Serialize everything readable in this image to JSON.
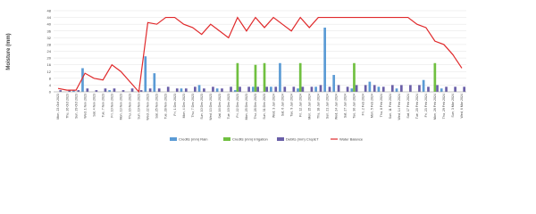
{
  "chart_data": {
    "type": "combo",
    "y_label": "Moisture (mm)",
    "categories": [
      "Mon, 23 Oct 2023",
      "Thu, 26 Oct 2023",
      "Sun, 29 Oct 2023",
      "Wed, 1 Nov 2023",
      "Sat, 4 Nov 2023",
      "Tue, 7 Nov 2023",
      "Fri, 10 Nov 2023",
      "Mon, 13 Nov 2023",
      "Thu, 16 Nov 2023",
      "Sun, 19 Nov 2023",
      "Wed, 22 Nov 2023",
      "Sat, 25 Nov 2023",
      "Tue, 28 Nov 2023",
      "Fri, 1 Dec 2023",
      "Mon, 4 Dec 2023",
      "Thu, 7 Dec 2023",
      "Sun, 10 Dec 2023",
      "Wed, 13 Dec 2023",
      "Sat, 16 Dec 2023",
      "Tue, 19 Dec 2023",
      "Fri, 22 Dec 2023",
      "Mon, 25 Dec 2023",
      "Thu, 28 Dec 2023",
      "Sun, 31 Dec 2023",
      "Wed, 3 Jan 2024",
      "Sat, 6 Jan 2024",
      "Tue, 9 Jan 2024",
      "Fri, 12 Jan 2024",
      "Mon, 15 Jan 2024",
      "Thu, 18 Jan 2024",
      "Sun, 21 Jan 2024",
      "Wed, 24 Jan 2024",
      "Sat, 27 Jan 2024",
      "Tue, 30 Jan 2024",
      "Fri, 2 Feb 2024",
      "Mon, 5 Feb 2024",
      "Thu, 8 Feb 2024",
      "Sun, 11 Feb 2024",
      "Wed, 14 Feb 2024",
      "Sat, 17 Feb 2024",
      "Tue, 20 Feb 2024",
      "Fri, 23 Feb 2024",
      "Mon, 26 Feb 2024",
      "Thu, 29 Feb 2024",
      "Sun, 3 Mar 2024",
      "Wed, 6 Mar 2024"
    ],
    "series": [
      {
        "name": "Credits (mm) Rain",
        "type": "bar",
        "color": "#5b9bd5",
        "values": [
          0,
          0,
          1,
          14,
          0,
          0,
          1,
          0,
          0,
          0,
          21,
          11,
          0,
          0,
          2,
          0,
          4,
          0,
          2,
          0,
          1,
          0,
          3,
          0,
          3,
          17,
          0,
          2,
          0,
          3,
          38,
          10,
          0,
          2,
          0,
          6,
          3,
          0,
          2,
          0,
          0,
          7,
          0,
          2,
          0,
          0
        ]
      },
      {
        "name": "Credits (mm) Irrigation",
        "type": "bar",
        "color": "#70c040",
        "values": [
          0,
          0,
          0,
          0,
          0,
          0,
          0,
          0,
          0,
          0,
          0,
          0,
          0,
          0,
          0,
          0,
          0,
          0,
          0,
          0,
          17,
          0,
          16,
          17,
          0,
          0,
          0,
          17,
          0,
          0,
          0,
          0,
          0,
          17,
          0,
          0,
          0,
          0,
          0,
          0,
          0,
          0,
          17,
          0,
          0,
          0
        ]
      },
      {
        "name": "Debits (mm) CropET",
        "type": "bar",
        "color": "#6a5fa8",
        "values": [
          1,
          1,
          1,
          2,
          1,
          2,
          2,
          1,
          2,
          1,
          2,
          2,
          3,
          2,
          2,
          3,
          2,
          3,
          2,
          3,
          3,
          3,
          3,
          3,
          3,
          3,
          3,
          3,
          3,
          4,
          3,
          4,
          3,
          4,
          4,
          4,
          3,
          4,
          4,
          4,
          4,
          3,
          4,
          3,
          3,
          3
        ]
      },
      {
        "name": "Water Balance",
        "type": "line",
        "color": "#e0292b",
        "values": [
          2,
          1,
          1,
          11,
          8,
          7,
          16,
          12,
          6,
          0,
          41,
          40,
          44,
          44,
          40,
          38,
          34,
          40,
          36,
          32,
          44,
          36,
          44,
          38,
          44,
          40,
          36,
          44,
          38,
          44,
          44,
          44,
          44,
          44,
          44,
          44,
          44,
          44,
          44,
          44,
          40,
          38,
          30,
          28,
          22,
          14
        ]
      }
    ],
    "ylim": [
      0,
      48
    ],
    "yticks": [
      0,
      4,
      8,
      12,
      16,
      20,
      24,
      28,
      32,
      36,
      40,
      44,
      48
    ],
    "grid": true
  }
}
